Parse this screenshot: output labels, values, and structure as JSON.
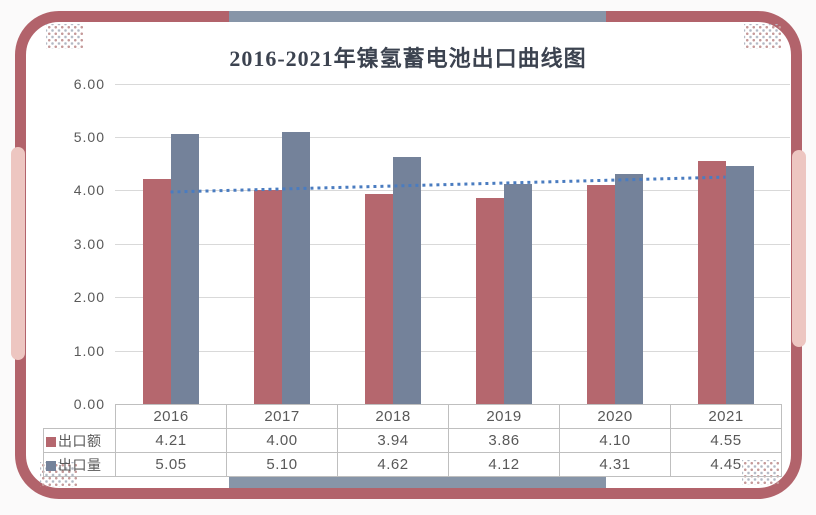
{
  "title": "2016-2021年镍氢蓄电池出口曲线图",
  "colors": {
    "frame_border": "#b2636b",
    "frame_accent_pink": "#edc6c1",
    "frame_accent_gray": "#8795a8",
    "bar_export_value": "#b5676e",
    "bar_export_volume": "#74829a",
    "trendline": "#4a7cc0",
    "gridline": "#d9d9d9",
    "table_border": "#bfbfbf",
    "tick_text": "#595959",
    "title_text": "#3c4350"
  },
  "chart_data": {
    "type": "bar",
    "title": "2016-2021年镍氢蓄电池出口曲线图",
    "categories": [
      "2016",
      "2017",
      "2018",
      "2019",
      "2020",
      "2021"
    ],
    "series": [
      {
        "name": "出口额",
        "key": "export-value",
        "color": "#b5676e",
        "values": [
          4.21,
          4.0,
          3.94,
          3.86,
          4.1,
          4.55
        ]
      },
      {
        "name": "出口量",
        "key": "export-volume",
        "color": "#74829a",
        "values": [
          5.05,
          5.1,
          4.62,
          4.12,
          4.31,
          4.45
        ]
      }
    ],
    "trendline": {
      "for_series": "出口额",
      "style": "dotted",
      "color": "#4a7cc0",
      "start_value": 3.97,
      "end_value": 4.25
    },
    "ylim": [
      0,
      6
    ],
    "ytick_labels": [
      "0.00",
      "1.00",
      "2.00",
      "3.00",
      "4.00",
      "5.00",
      "6.00"
    ],
    "grid": true,
    "legend_position": "table-rows-left",
    "data_table_shown": true
  }
}
